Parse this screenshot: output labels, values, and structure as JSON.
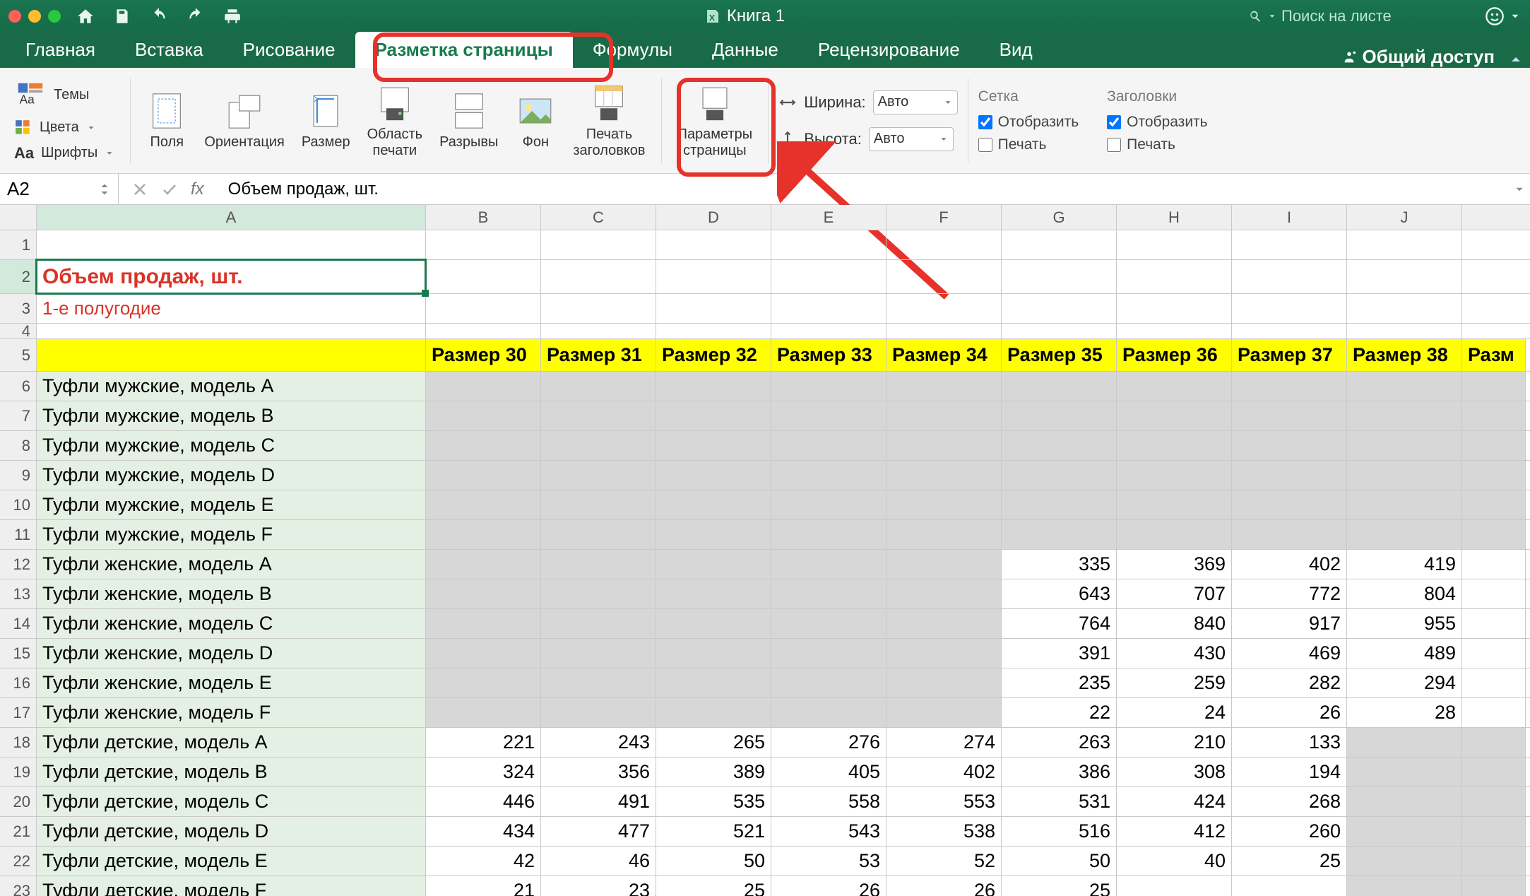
{
  "title": "Книга 1",
  "search_placeholder": "Поиск на листе",
  "tabs": [
    "Главная",
    "Вставка",
    "Рисование",
    "Разметка страницы",
    "Формулы",
    "Данные",
    "Рецензирование",
    "Вид"
  ],
  "active_tab_index": 3,
  "share_label": "Общий доступ",
  "ribbon": {
    "themes": "Темы",
    "colors": "Цвета",
    "fonts": "Шрифты",
    "margins": "Поля",
    "orientation": "Ориентация",
    "size": "Размер",
    "print_area": "Область\nпечати",
    "breaks": "Разрывы",
    "background": "Фон",
    "print_titles": "Печать\nзаголовков",
    "page_setup": "Параметры\nстраницы",
    "width_label": "Ширина:",
    "height_label": "Высота:",
    "auto": "Авто",
    "gridlines": "Сетка",
    "headings": "Заголовки",
    "view": "Отобразить",
    "print": "Печать"
  },
  "namebox": "A2",
  "formula": "Объем продаж, шт.",
  "columns": {
    "A_width": 551,
    "N_width": 163,
    "headers": [
      "A",
      "B",
      "C",
      "D",
      "E",
      "F",
      "G",
      "H",
      "I",
      "J"
    ]
  },
  "cells": {
    "a2": "Объем продаж, шт.",
    "a3": "1-е полугодие",
    "size_prefix": "Размер",
    "size_start": 30,
    "size_count": 9,
    "size_overflow": "Разм",
    "products": [
      "Туфли мужские, модель A",
      "Туфли мужские, модель B",
      "Туфли мужские, модель C",
      "Туфли мужские, модель D",
      "Туфли мужские, модель E",
      "Туфли мужские, модель F",
      "Туфли женские, модель A",
      "Туфли женские, модель B",
      "Туфли женские, модель C",
      "Туфли женские, модель D",
      "Туфли женские, модель E",
      "Туфли женские, модель F",
      "Туфли детские, модель A",
      "Туфли детские, модель B",
      "Туфли детские, модель C",
      "Туфли детские, модель D",
      "Туфли детские, модель E",
      "Туфли детские, модель F"
    ],
    "grey_ranges": {
      "men": {
        "from_col": 0,
        "to_col": 9
      },
      "women": {
        "from_col": 0,
        "to_col": 4
      },
      "children": {
        "from_col": 8,
        "to_col": 9
      }
    },
    "data": {
      "12": {
        "5": 335,
        "6": 369,
        "7": 402,
        "8": 419
      },
      "13": {
        "5": 643,
        "6": 707,
        "7": 772,
        "8": 804
      },
      "14": {
        "5": 764,
        "6": 840,
        "7": 917,
        "8": 955
      },
      "15": {
        "5": 391,
        "6": 430,
        "7": 469,
        "8": 489
      },
      "16": {
        "5": 235,
        "6": 259,
        "7": 282,
        "8": 294
      },
      "17": {
        "5": 22,
        "6": 24,
        "7": 26,
        "8": 28
      },
      "18": {
        "0": 221,
        "1": 243,
        "2": 265,
        "3": 276,
        "4": 274,
        "5": 263,
        "6": 210,
        "7": 133
      },
      "19": {
        "0": 324,
        "1": 356,
        "2": 389,
        "3": 405,
        "4": 402,
        "5": 386,
        "6": 308,
        "7": 194
      },
      "20": {
        "0": 446,
        "1": 491,
        "2": 535,
        "3": 558,
        "4": 553,
        "5": 531,
        "6": 424,
        "7": 268
      },
      "21": {
        "0": 434,
        "1": 477,
        "2": 521,
        "3": 543,
        "4": 538,
        "5": 516,
        "6": 412,
        "7": 260
      },
      "22": {
        "0": 42,
        "1": 46,
        "2": 50,
        "3": 53,
        "4": 52,
        "5": 50,
        "6": 40,
        "7": 25
      },
      "23": {
        "0": 21,
        "1": 23,
        "2": 25,
        "3": 26,
        "4": 26,
        "5": 25
      }
    }
  },
  "colors": {
    "accent": "#1a7a4f",
    "highlight": "#e6322a",
    "yellow": "#ffff00",
    "green_cell": "#e4f0e3",
    "grey_cell": "#d7d7d7"
  }
}
